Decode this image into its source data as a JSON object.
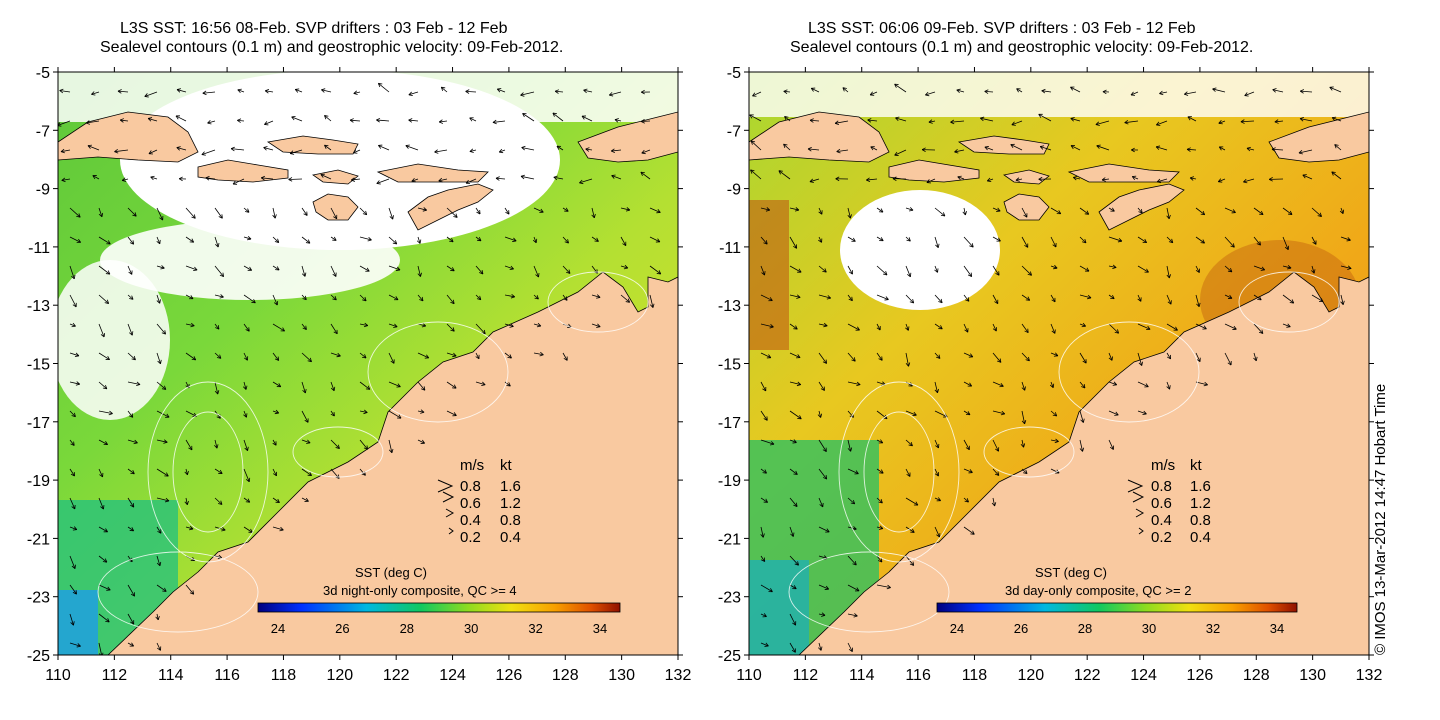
{
  "panels": [
    {
      "title_line1": "L3S SST: 16:56 08-Feb. SVP drifters : 03 Feb - 12 Feb",
      "title_line2": "Sealevel contours (0.1 m) and geostrophic velocity: 09-Feb-2012.",
      "colorbar_title": "SST (deg C)",
      "colorbar_subtitle": "3d night-only composite, QC >= 4",
      "colorbar_ticks": [
        "24",
        "26",
        "28",
        "30",
        "32",
        "34"
      ],
      "velocity_legend": {
        "header_ms": "m/s",
        "header_kt": "kt",
        "rows": [
          {
            "ms": "0.8",
            "kt": "1.6"
          },
          {
            "ms": "0.6",
            "kt": "1.2"
          },
          {
            "ms": "0.4",
            "kt": "0.8"
          },
          {
            "ms": "0.2",
            "kt": "0.4"
          }
        ]
      }
    },
    {
      "title_line1": "L3S SST: 06:06 09-Feb. SVP drifters : 03 Feb - 12 Feb",
      "title_line2": "Sealevel contours (0.1 m) and geostrophic velocity: 09-Feb-2012.",
      "colorbar_title": "SST (deg C)",
      "colorbar_subtitle": "3d day-only composite, QC >= 2",
      "colorbar_ticks": [
        "24",
        "26",
        "28",
        "30",
        "32",
        "34"
      ],
      "velocity_legend": {
        "header_ms": "m/s",
        "header_kt": "kt",
        "rows": [
          {
            "ms": "0.8",
            "kt": "1.6"
          },
          {
            "ms": "0.6",
            "kt": "1.2"
          },
          {
            "ms": "0.4",
            "kt": "0.8"
          },
          {
            "ms": "0.2",
            "kt": "0.4"
          }
        ]
      }
    }
  ],
  "axes": {
    "lat_ticks": [
      "-5",
      "-7",
      "-9",
      "-11",
      "-13",
      "-15",
      "-17",
      "-19",
      "-21",
      "-23",
      "-25"
    ],
    "lon_ticks": [
      "110",
      "112",
      "114",
      "116",
      "118",
      "120",
      "122",
      "124",
      "126",
      "128",
      "130",
      "132"
    ],
    "lat_range": [
      -25,
      -5
    ],
    "lon_range": [
      110,
      132
    ]
  },
  "copyright": "© IMOS 13-Mar-2012 14:47 Hobart Time",
  "colors": {
    "land": "#f9c9a0",
    "cloud": "#ffffff",
    "sst_cool": "#17b8d0",
    "sst_mid": "#3cd03c",
    "sst_warm": "#f2b400",
    "sst_hot": "#c0400a"
  }
}
